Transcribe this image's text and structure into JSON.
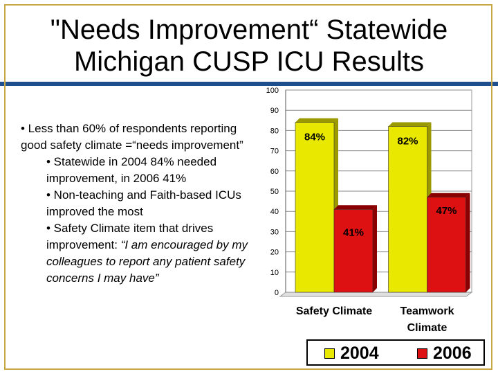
{
  "slide": {
    "title_line1": "\"Needs Improvement“ Statewide",
    "title_line2": "Michigan CUSP ICU Results",
    "bullets": [
      "• Less than 60% of respondents reporting good safety climate =“needs improvement”",
      "• Statewide in 2004 84% needed improvement, in 2006 41%",
      "• Non-teaching and Faith-based ICUs improved the most",
      "• Safety Climate item that drives improvement: ",
      "“I am encouraged by my colleagues to report any patient safety concerns I may have”"
    ]
  },
  "chart_data": {
    "type": "bar",
    "categories": [
      [
        "Safety Climate"
      ],
      [
        "Teamwork",
        "Climate"
      ]
    ],
    "series": [
      {
        "name": "2004",
        "values": [
          84,
          82
        ],
        "labels": [
          "84%",
          "82%"
        ],
        "color": "#e8e800"
      },
      {
        "name": "2006",
        "values": [
          41,
          47
        ],
        "labels": [
          "41%",
          "47%"
        ],
        "color": "#dd1111"
      }
    ],
    "ylim": [
      0,
      100
    ],
    "yticks": [
      0,
      10,
      20,
      30,
      40,
      50,
      60,
      70,
      80,
      90,
      100
    ],
    "grid": true,
    "legend": "bottom"
  }
}
